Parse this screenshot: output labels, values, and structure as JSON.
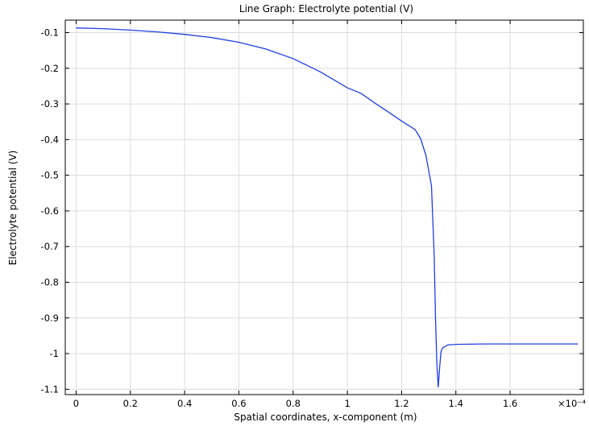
{
  "chart_data": {
    "type": "line",
    "title": "Line Graph: Electrolyte potential (V)",
    "xlabel": "Spatial coordinates, x-component (m)",
    "ylabel": "Electrolyte potential (V)",
    "x_exponent_label": "×10⁻⁴",
    "xlim": [
      -0.04,
      1.87
    ],
    "ylim": [
      -1.115,
      -0.065
    ],
    "x_ticks": [
      0,
      0.2,
      0.4,
      0.6,
      0.8,
      1,
      1.2,
      1.4,
      1.6
    ],
    "x_tick_labels": [
      "0",
      "0.2",
      "0.4",
      "0.6",
      "0.8",
      "1",
      "1.2",
      "1.4",
      "1.6"
    ],
    "y_ticks": [
      -0.1,
      -0.2,
      -0.3,
      -0.4,
      -0.5,
      -0.6,
      -0.7,
      -0.8,
      -0.9,
      -1,
      -1.1
    ],
    "y_tick_labels": [
      "-0.1",
      "-0.2",
      "-0.3",
      "-0.4",
      "-0.5",
      "-0.6",
      "-0.7",
      "-0.8",
      "-0.9",
      "-1",
      "-1.1"
    ],
    "grid": true,
    "line_color": "#1f3fe0",
    "series": [
      {
        "x": [
          0,
          0.1,
          0.2,
          0.3,
          0.4,
          0.5,
          0.6,
          0.7,
          0.8,
          0.9,
          1.0,
          1.05,
          1.1,
          1.15,
          1.2,
          1.25,
          1.27,
          1.29,
          1.31,
          1.32,
          1.325,
          1.33,
          1.335,
          1.34,
          1.345,
          1.35,
          1.36,
          1.37,
          1.4,
          1.5,
          1.6,
          1.7,
          1.85
        ],
        "y": [
          -0.087,
          -0.089,
          -0.093,
          -0.098,
          -0.105,
          -0.114,
          -0.127,
          -0.146,
          -0.173,
          -0.21,
          -0.255,
          -0.27,
          -0.297,
          -0.322,
          -0.348,
          -0.372,
          -0.397,
          -0.445,
          -0.53,
          -0.72,
          -0.9,
          -1.03,
          -1.095,
          -1.04,
          -0.995,
          -0.985,
          -0.98,
          -0.976,
          -0.974,
          -0.973,
          -0.973,
          -0.973,
          -0.973
        ]
      }
    ]
  }
}
